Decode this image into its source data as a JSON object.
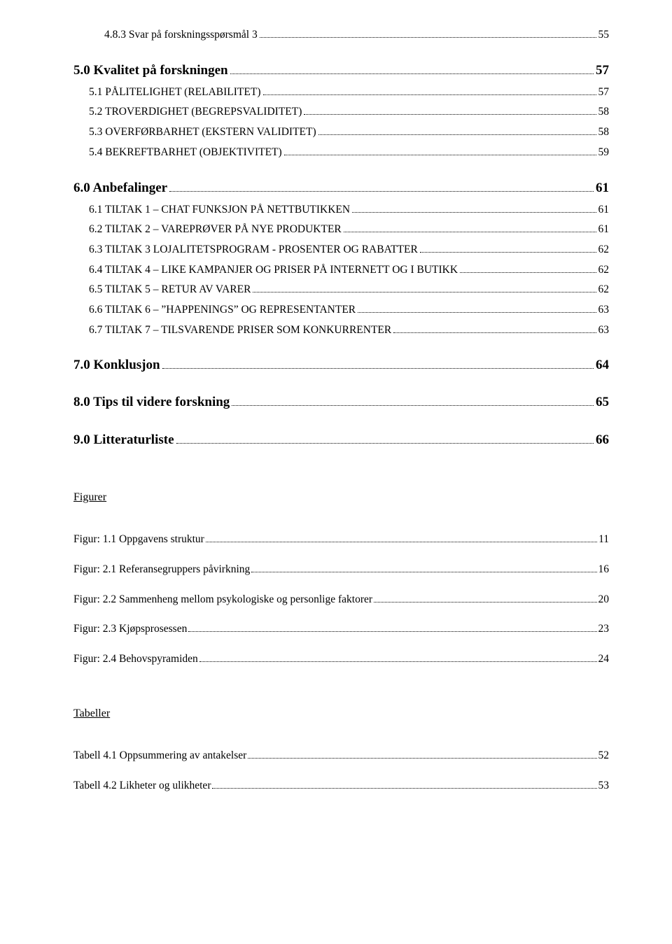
{
  "toc": [
    {
      "level": "h3",
      "label": "4.8.3 Svar på forskningsspørsmål 3",
      "page": "55",
      "caps": false
    },
    {
      "level": "h1",
      "label": "5.0 Kvalitet på forskningen",
      "page": "57"
    },
    {
      "level": "h2",
      "label": "5.1 PÅLITELIGHET (RELABILITET)",
      "page": "57",
      "caps": true
    },
    {
      "level": "h2",
      "label": "5.2 TROVERDIGHET (BEGREPSVALIDITET)",
      "page": "58",
      "caps": true
    },
    {
      "level": "h2",
      "label": "5.3 OVERFØRBARHET (EKSTERN VALIDITET)",
      "page": "58",
      "caps": true
    },
    {
      "level": "h2",
      "label": "5.4 BEKREFTBARHET (OBJEKTIVITET)",
      "page": "59",
      "caps": true
    },
    {
      "level": "h1",
      "label": "6.0 Anbefalinger",
      "page": "61"
    },
    {
      "level": "h2",
      "label": "6.1 TILTAK 1 – CHAT FUNKSJON PÅ NETTBUTIKKEN",
      "page": "61",
      "caps": true
    },
    {
      "level": "h2",
      "label": "6.2 TILTAK 2 – VAREPRØVER PÅ NYE PRODUKTER",
      "page": "61",
      "caps": true
    },
    {
      "level": "h2",
      "label": "6.3 TILTAK 3 LOJALITETSPROGRAM - PROSENTER OG RABATTER",
      "page": "62",
      "caps": true
    },
    {
      "level": "h2",
      "label": "6.4 TILTAK 4 – LIKE KAMPANJER OG PRISER PÅ INTERNETT OG I BUTIKK",
      "page": "62",
      "caps": true
    },
    {
      "level": "h2",
      "label": "6.5 TILTAK 5 – RETUR AV VARER",
      "page": "62",
      "caps": true
    },
    {
      "level": "h2",
      "label": "6.6 TILTAK 6 – ˮHAPPENINGSˮ OG REPRESENTANTER",
      "page": "63",
      "caps": true
    },
    {
      "level": "h2",
      "label": "6.7 TILTAK 7 – TILSVARENDE PRISER SOM KONKURRENTER",
      "page": "63",
      "caps": true
    },
    {
      "level": "h1",
      "label": "7.0 Konklusjon",
      "page": "64"
    },
    {
      "level": "h1",
      "label": "8.0 Tips til videre forskning",
      "page": "65"
    },
    {
      "level": "h1",
      "label": "9.0 Litteraturliste",
      "page": "66"
    }
  ],
  "figuresHeading": "Figurer",
  "figures": [
    {
      "label": "Figur: 1.1 Oppgavens struktur",
      "page": "11",
      "sep": "double"
    },
    {
      "label": "Figur: 2.1 Referansegruppers påvirkning",
      "page": "16",
      "sep": "single"
    },
    {
      "label": "Figur: 2.2 Sammenheng mellom psykologiske og personlige faktorer",
      "page": "20",
      "sep": "mixed"
    },
    {
      "label": "Figur: 2.3 Kjøpsprosessen",
      "page": "23",
      "sep": "single"
    },
    {
      "label": "Figur: 2.4 Behovspyramiden",
      "page": "24",
      "sep": "single"
    }
  ],
  "tablesHeading": "Tabeller",
  "tables": [
    {
      "label": "Tabell 4.1 Oppsummering av antakelser",
      "page": "52",
      "sep": "double"
    },
    {
      "label": "Tabell 4.2 Likheter og ulikheter",
      "page": "53",
      "sep": "single"
    }
  ],
  "colors": {
    "text": "#000000",
    "background": "#ffffff"
  },
  "fonts": {
    "body": "Times New Roman",
    "body_size_pt": 12,
    "heading_size_pt": 14
  }
}
